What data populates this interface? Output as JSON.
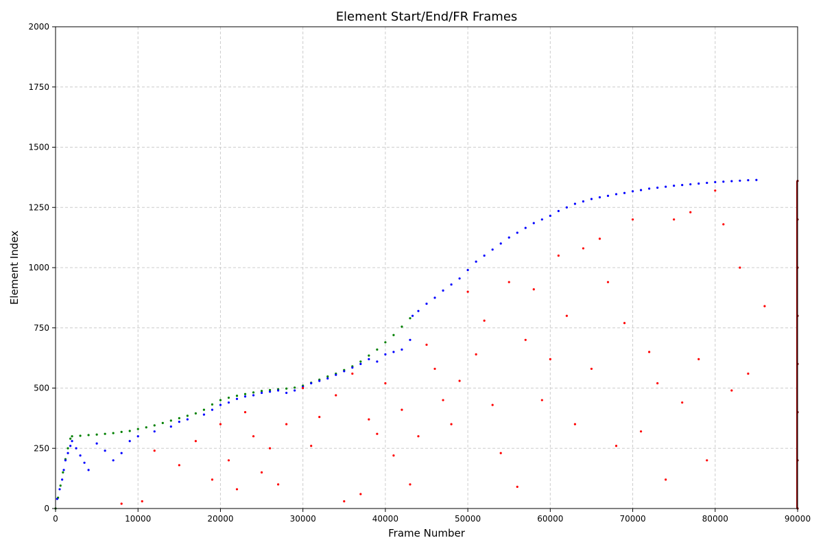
{
  "chart_data": {
    "type": "scatter",
    "title": "Element Start/End/FR Frames",
    "xlabel": "Frame Number",
    "ylabel": "Element Index",
    "xlim": [
      0,
      90000
    ],
    "ylim": [
      0,
      2000
    ],
    "xticks": [
      0,
      10000,
      20000,
      30000,
      40000,
      50000,
      60000,
      70000,
      80000,
      90000
    ],
    "yticks": [
      0,
      250,
      500,
      750,
      1000,
      1250,
      1500,
      1750,
      2000
    ],
    "grid": true,
    "series": [
      {
        "color": "#008000",
        "points": [
          [
            0,
            0
          ],
          [
            300,
            45
          ],
          [
            600,
            95
          ],
          [
            900,
            150
          ],
          [
            1200,
            205
          ],
          [
            1500,
            250
          ],
          [
            1800,
            290
          ],
          [
            2000,
            300
          ],
          [
            3000,
            302
          ],
          [
            4000,
            305
          ],
          [
            5000,
            307
          ],
          [
            6000,
            310
          ],
          [
            7000,
            313
          ],
          [
            8000,
            318
          ],
          [
            9000,
            322
          ],
          [
            10000,
            330
          ],
          [
            11000,
            337
          ],
          [
            12000,
            345
          ],
          [
            13000,
            355
          ],
          [
            14000,
            365
          ],
          [
            15000,
            375
          ],
          [
            16000,
            385
          ],
          [
            17000,
            395
          ],
          [
            18000,
            410
          ],
          [
            19000,
            432
          ],
          [
            20000,
            450
          ],
          [
            21000,
            460
          ],
          [
            22000,
            468
          ],
          [
            23000,
            475
          ],
          [
            24000,
            482
          ],
          [
            25000,
            488
          ],
          [
            26000,
            492
          ],
          [
            27000,
            495
          ],
          [
            28000,
            498
          ],
          [
            29000,
            502
          ],
          [
            30000,
            510
          ],
          [
            31000,
            522
          ],
          [
            32000,
            535
          ],
          [
            33000,
            548
          ],
          [
            34000,
            560
          ],
          [
            35000,
            575
          ],
          [
            36000,
            590
          ],
          [
            37000,
            610
          ],
          [
            38000,
            635
          ],
          [
            39000,
            660
          ],
          [
            40000,
            690
          ],
          [
            41000,
            720
          ],
          [
            42000,
            755
          ],
          [
            43000,
            790
          ]
        ]
      },
      {
        "color": "#0000ff",
        "points": [
          [
            200,
            40
          ],
          [
            500,
            80
          ],
          [
            800,
            120
          ],
          [
            1000,
            160
          ],
          [
            1200,
            200
          ],
          [
            1500,
            230
          ],
          [
            1800,
            260
          ],
          [
            2000,
            280
          ],
          [
            2500,
            250
          ],
          [
            3000,
            220
          ],
          [
            3500,
            190
          ],
          [
            4000,
            160
          ],
          [
            5000,
            270
          ],
          [
            6000,
            240
          ],
          [
            7000,
            200
          ],
          [
            8000,
            230
          ],
          [
            9000,
            280
          ],
          [
            10000,
            300
          ],
          [
            12000,
            320
          ],
          [
            14000,
            340
          ],
          [
            15000,
            360
          ],
          [
            16000,
            370
          ],
          [
            18000,
            390
          ],
          [
            19000,
            410
          ],
          [
            20000,
            430
          ],
          [
            21000,
            440
          ],
          [
            22000,
            455
          ],
          [
            23000,
            465
          ],
          [
            24000,
            470
          ],
          [
            25000,
            480
          ],
          [
            26000,
            485
          ],
          [
            27000,
            490
          ],
          [
            28000,
            480
          ],
          [
            29000,
            490
          ],
          [
            30000,
            505
          ],
          [
            31000,
            520
          ],
          [
            32000,
            530
          ],
          [
            33000,
            540
          ],
          [
            34000,
            555
          ],
          [
            35000,
            570
          ],
          [
            36000,
            585
          ],
          [
            37000,
            600
          ],
          [
            38000,
            620
          ],
          [
            39000,
            610
          ],
          [
            40000,
            640
          ],
          [
            41000,
            650
          ],
          [
            42000,
            660
          ],
          [
            43000,
            700
          ],
          [
            43300,
            800
          ],
          [
            44000,
            820
          ],
          [
            45000,
            850
          ],
          [
            46000,
            875
          ],
          [
            47000,
            905
          ],
          [
            48000,
            930
          ],
          [
            49000,
            955
          ],
          [
            50000,
            990
          ],
          [
            51000,
            1025
          ],
          [
            52000,
            1050
          ],
          [
            53000,
            1075
          ],
          [
            54000,
            1100
          ],
          [
            55000,
            1125
          ],
          [
            56000,
            1145
          ],
          [
            57000,
            1165
          ],
          [
            58000,
            1185
          ],
          [
            59000,
            1200
          ],
          [
            60000,
            1215
          ],
          [
            61000,
            1235
          ],
          [
            62000,
            1250
          ],
          [
            63000,
            1265
          ],
          [
            64000,
            1275
          ],
          [
            65000,
            1285
          ],
          [
            66000,
            1292
          ],
          [
            67000,
            1298
          ],
          [
            68000,
            1305
          ],
          [
            69000,
            1310
          ],
          [
            70000,
            1317
          ],
          [
            71000,
            1322
          ],
          [
            72000,
            1328
          ],
          [
            73000,
            1332
          ],
          [
            74000,
            1336
          ],
          [
            75000,
            1340
          ],
          [
            76000,
            1343
          ],
          [
            77000,
            1346
          ],
          [
            78000,
            1349
          ],
          [
            79000,
            1352
          ],
          [
            80000,
            1355
          ],
          [
            81000,
            1357
          ],
          [
            82000,
            1359
          ],
          [
            83000,
            1361
          ],
          [
            84000,
            1363
          ],
          [
            85000,
            1364
          ]
        ]
      },
      {
        "color": "#ff0000",
        "points": [
          [
            8000,
            20
          ],
          [
            10500,
            30
          ],
          [
            12000,
            240
          ],
          [
            15000,
            180
          ],
          [
            17000,
            280
          ],
          [
            19000,
            120
          ],
          [
            20000,
            350
          ],
          [
            21000,
            200
          ],
          [
            22000,
            80
          ],
          [
            23000,
            400
          ],
          [
            24000,
            300
          ],
          [
            25000,
            150
          ],
          [
            26000,
            250
          ],
          [
            27000,
            100
          ],
          [
            28000,
            350
          ],
          [
            30000,
            500
          ],
          [
            31000,
            260
          ],
          [
            32000,
            380
          ],
          [
            34000,
            470
          ],
          [
            35000,
            30
          ],
          [
            36000,
            560
          ],
          [
            37000,
            60
          ],
          [
            38000,
            370
          ],
          [
            39000,
            310
          ],
          [
            40000,
            520
          ],
          [
            41000,
            220
          ],
          [
            42000,
            410
          ],
          [
            43000,
            100
          ],
          [
            44000,
            300
          ],
          [
            45000,
            680
          ],
          [
            46000,
            580
          ],
          [
            47000,
            450
          ],
          [
            48000,
            350
          ],
          [
            49000,
            530
          ],
          [
            50000,
            900
          ],
          [
            51000,
            640
          ],
          [
            52000,
            780
          ],
          [
            53000,
            430
          ],
          [
            54000,
            230
          ],
          [
            55000,
            940
          ],
          [
            56000,
            90
          ],
          [
            57000,
            700
          ],
          [
            58000,
            910
          ],
          [
            59000,
            450
          ],
          [
            60000,
            620
          ],
          [
            61000,
            1050
          ],
          [
            62000,
            800
          ],
          [
            63000,
            350
          ],
          [
            64000,
            1080
          ],
          [
            65000,
            580
          ],
          [
            66000,
            1120
          ],
          [
            67000,
            940
          ],
          [
            68000,
            260
          ],
          [
            69000,
            770
          ],
          [
            70000,
            1200
          ],
          [
            71000,
            320
          ],
          [
            72000,
            650
          ],
          [
            73000,
            520
          ],
          [
            74000,
            120
          ],
          [
            75000,
            1200
          ],
          [
            76000,
            440
          ],
          [
            77000,
            1230
          ],
          [
            78000,
            620
          ],
          [
            79000,
            200
          ],
          [
            80000,
            1320
          ],
          [
            81000,
            1180
          ],
          [
            82000,
            490
          ],
          [
            83000,
            1000
          ],
          [
            84000,
            560
          ],
          [
            86000,
            840
          ]
        ]
      },
      {
        "color": "#8b0000",
        "points": [
          [
            90000,
            0
          ],
          [
            90000,
            200
          ],
          [
            90000,
            400
          ],
          [
            90000,
            600
          ],
          [
            90000,
            800
          ],
          [
            90000,
            1000
          ],
          [
            90000,
            1200
          ],
          [
            90000,
            1360
          ]
        ]
      }
    ]
  }
}
